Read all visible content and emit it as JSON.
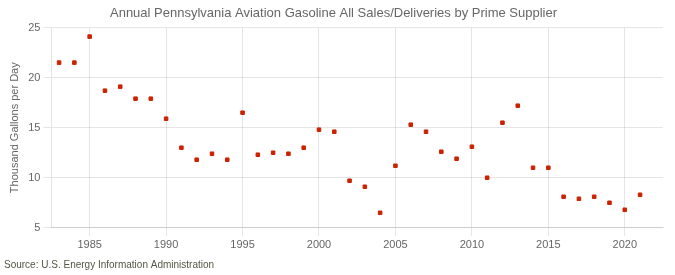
{
  "chart_data": {
    "type": "scatter",
    "title": "Annual Pennsylvania Aviation Gasoline All Sales/Deliveries by Prime Supplier",
    "ylabel": "Thousand Gallons per Day",
    "annotation": "Source: U.S. Energy Information Administration",
    "x": [
      1983,
      1984,
      1985,
      1986,
      1987,
      1988,
      1989,
      1990,
      1991,
      1992,
      1993,
      1994,
      1995,
      1996,
      1997,
      1998,
      1999,
      2000,
      2001,
      2002,
      2003,
      2004,
      2005,
      2006,
      2007,
      2008,
      2009,
      2010,
      2011,
      2012,
      2013,
      2014,
      2015,
      2016,
      2017,
      2018,
      2019,
      2020,
      2021
    ],
    "values": [
      21.5,
      21.5,
      24.1,
      18.7,
      19.1,
      17.9,
      17.9,
      15.9,
      13.0,
      11.8,
      12.4,
      11.8,
      16.5,
      12.3,
      12.5,
      12.4,
      13.0,
      14.8,
      14.6,
      9.7,
      9.1,
      6.5,
      11.2,
      15.3,
      14.6,
      12.6,
      11.9,
      13.1,
      10.0,
      15.5,
      17.2,
      11.0,
      11.0,
      8.1,
      7.9,
      8.1,
      7.5,
      6.8,
      8.3
    ],
    "color": "#cc2200",
    "marker": "square",
    "xlim": [
      1982.5,
      2022.5
    ],
    "xticks": [
      1985,
      1990,
      1995,
      2000,
      2005,
      2010,
      2015,
      2020
    ],
    "ylim": [
      5,
      25
    ],
    "yticks": [
      5,
      10,
      15,
      20,
      25
    ],
    "grid": true
  }
}
